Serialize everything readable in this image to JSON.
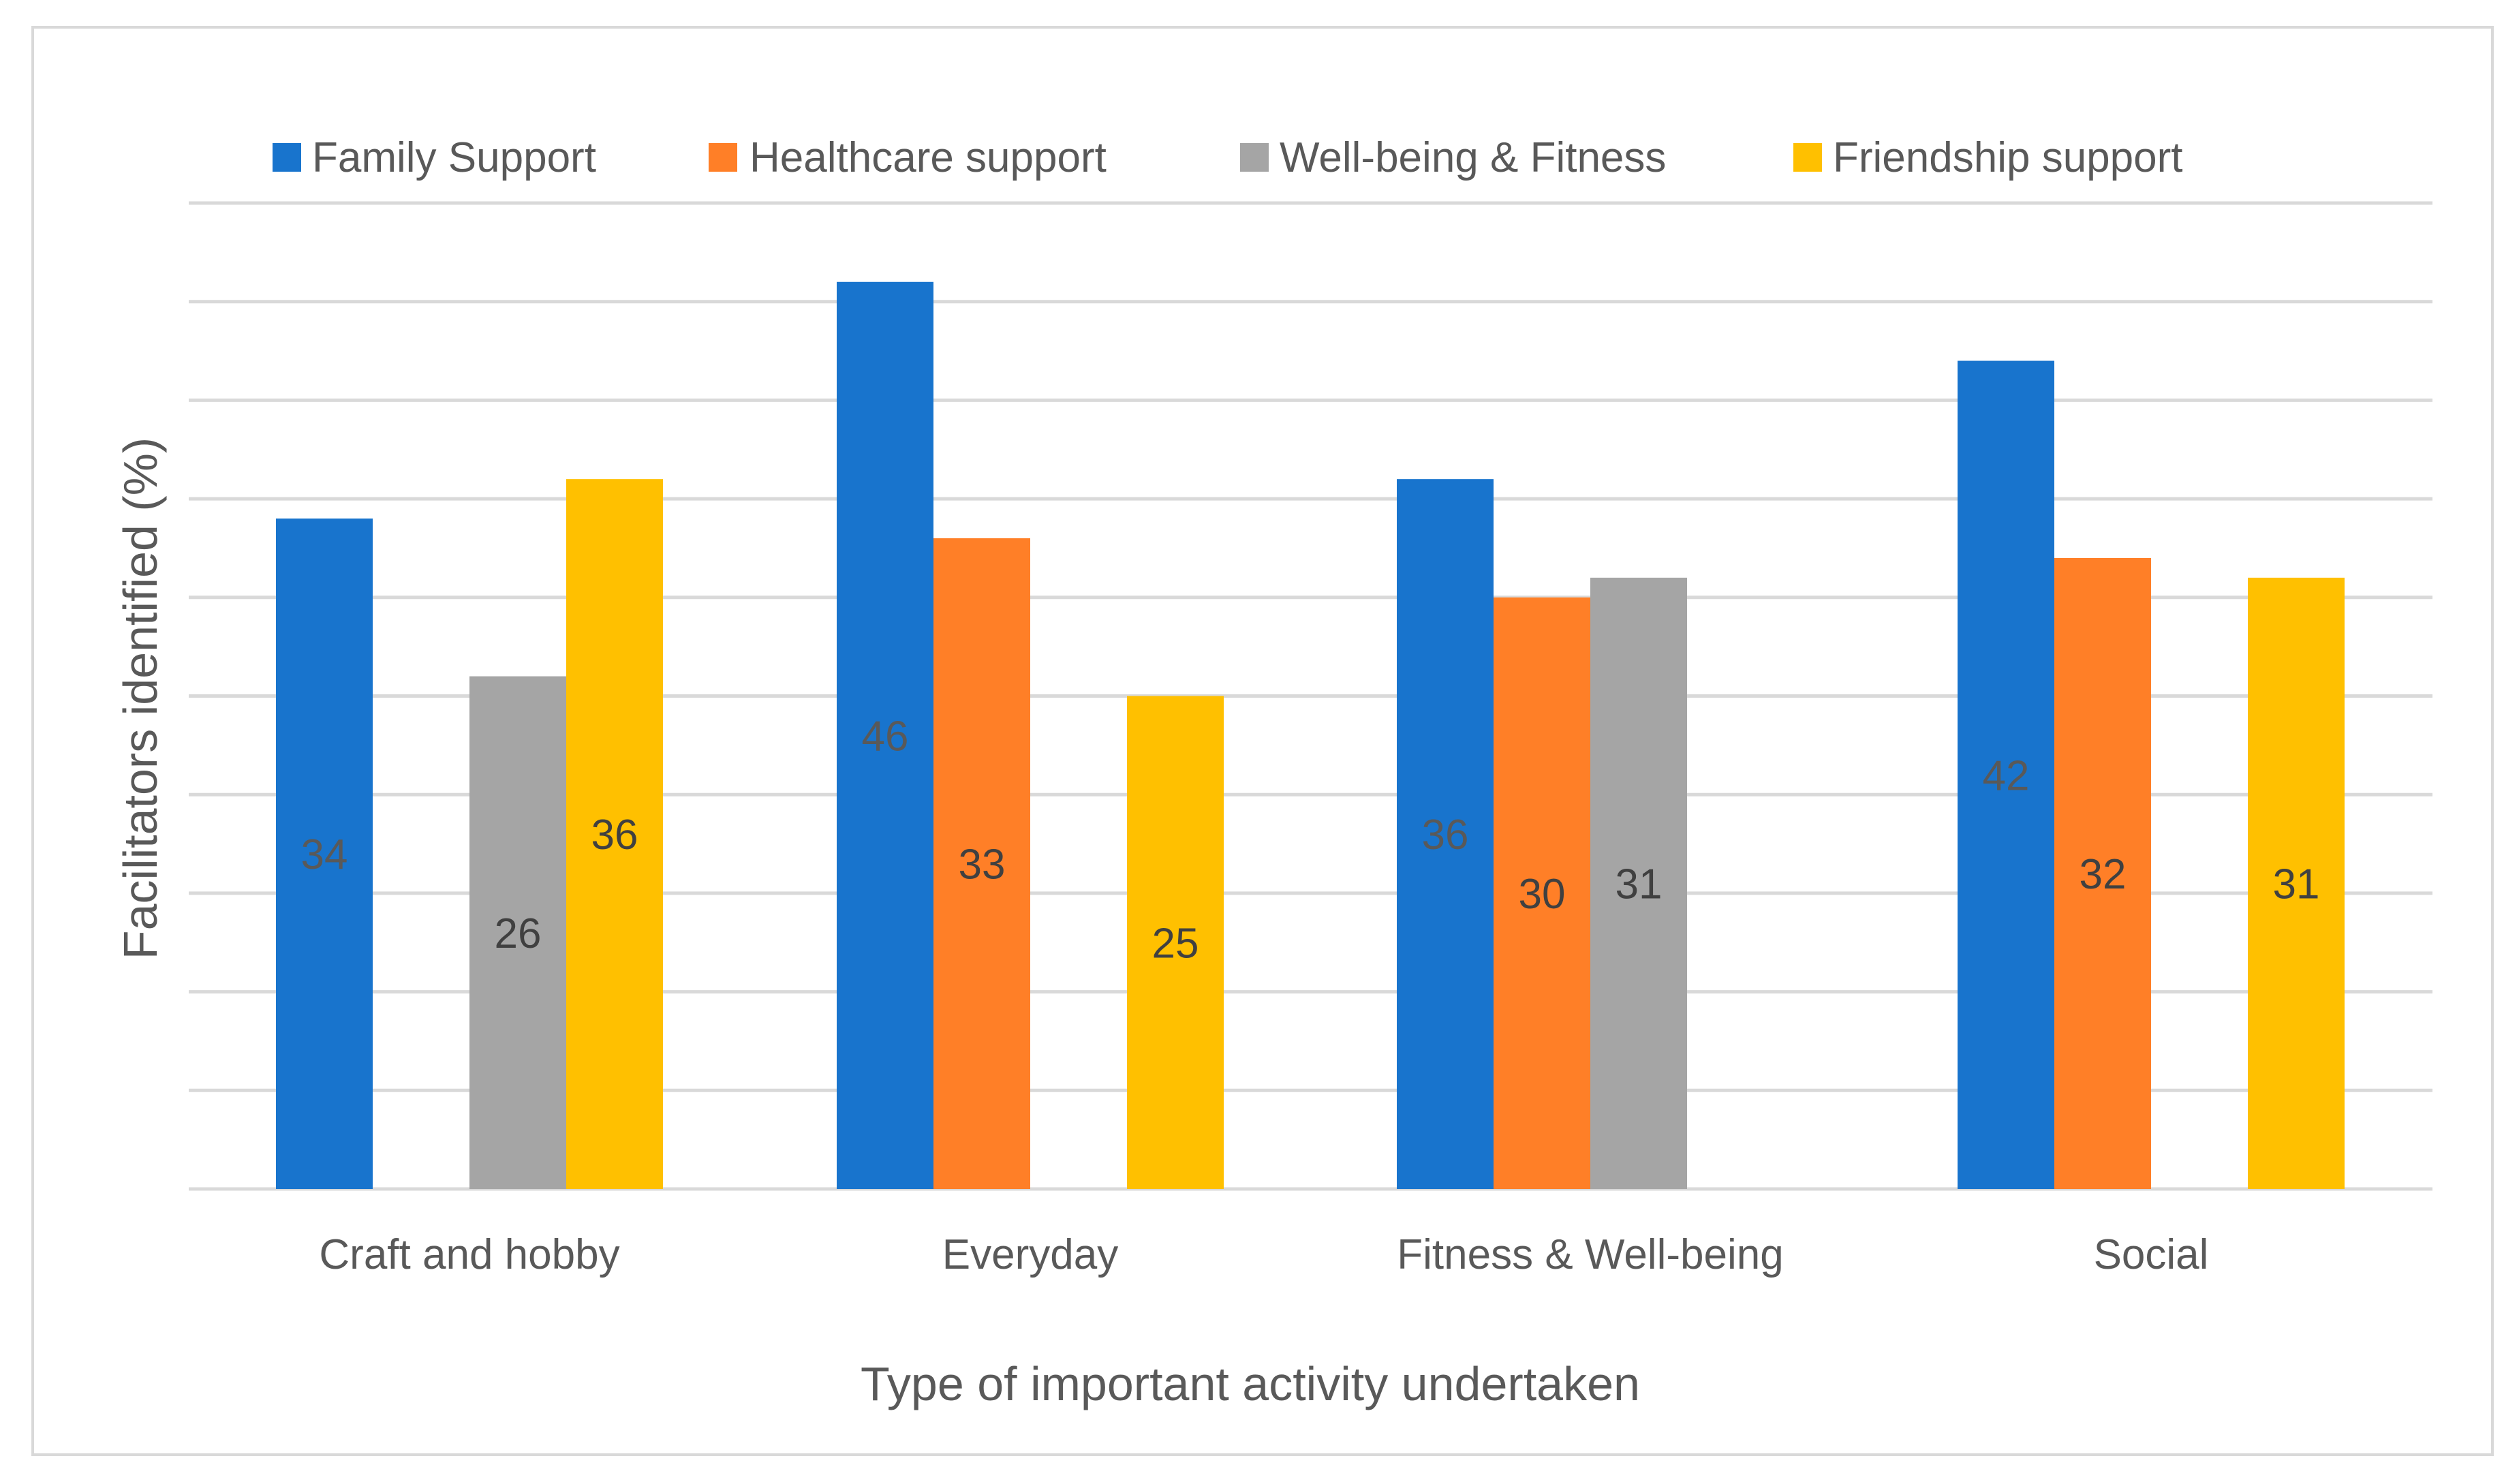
{
  "chart_data": {
    "type": "bar",
    "title": "",
    "xlabel": "Type of important activity undertaken",
    "ylabel": "Facilitators  identified (%)",
    "ylim": [
      0,
      50
    ],
    "ytick_step": 5,
    "grid": true,
    "legend_position": "top",
    "categories": [
      "Craft and hobby",
      "Everyday",
      "Fitness & Well-being",
      "Social"
    ],
    "series": [
      {
        "name": "Family Support",
        "color": "#1874CD",
        "values": [
          34,
          46,
          36,
          42
        ],
        "label_color": "#595959"
      },
      {
        "name": "Healthcare support",
        "color": "#FF7F27",
        "values": [
          null,
          33,
          30,
          32
        ],
        "label_color": "#404040"
      },
      {
        "name": "Well-being & Fitness",
        "color": "#A5A5A5",
        "values": [
          26,
          null,
          31,
          null
        ],
        "label_color": "#404040"
      },
      {
        "name": "Friendship support",
        "color": "#FFC000",
        "values": [
          36,
          25,
          null,
          31
        ],
        "label_color": "#404040"
      }
    ]
  }
}
